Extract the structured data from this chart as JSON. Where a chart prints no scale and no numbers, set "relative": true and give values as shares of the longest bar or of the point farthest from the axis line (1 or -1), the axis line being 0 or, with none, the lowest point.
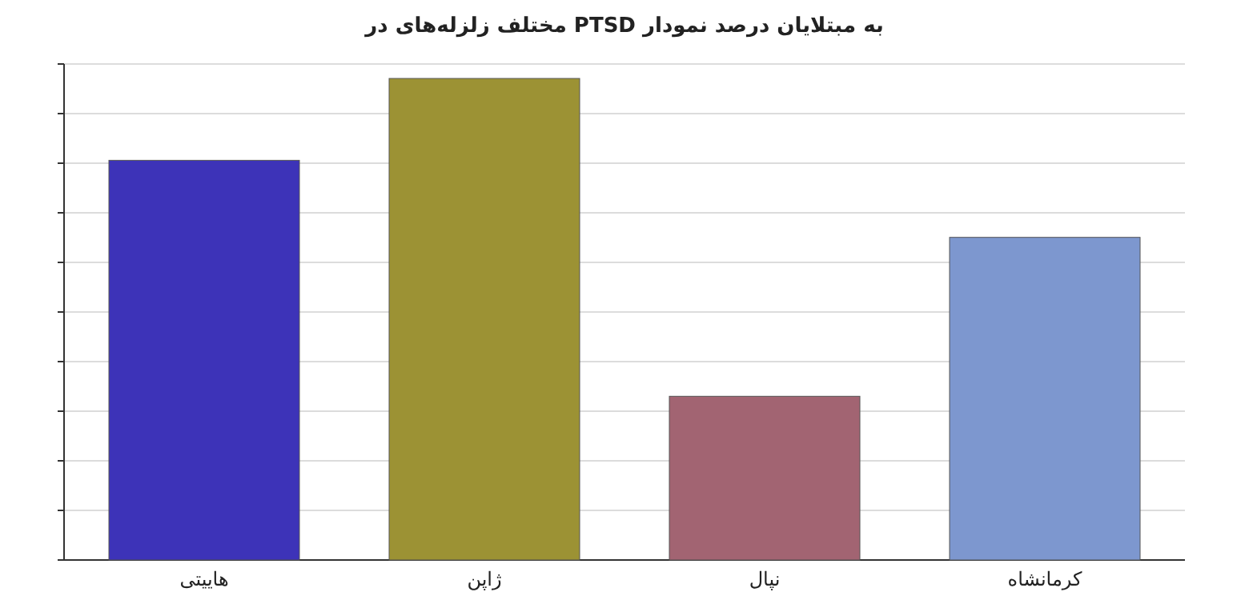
{
  "chart_data": {
    "type": "bar",
    "title": "به مبتلایان درصد نمودار PTSD مختلف زلزله‌های در",
    "categories": [
      "هاییتی",
      "ژاپن",
      "نپال",
      "کرمانشاه"
    ],
    "values": [
      0.83,
      1,
      0.34,
      0.67
    ],
    "colors": [
      "#3d33b8",
      "#9c9234",
      "#a26472",
      "#7d97cf"
    ],
    "relative": true,
    "grid": "y"
  }
}
